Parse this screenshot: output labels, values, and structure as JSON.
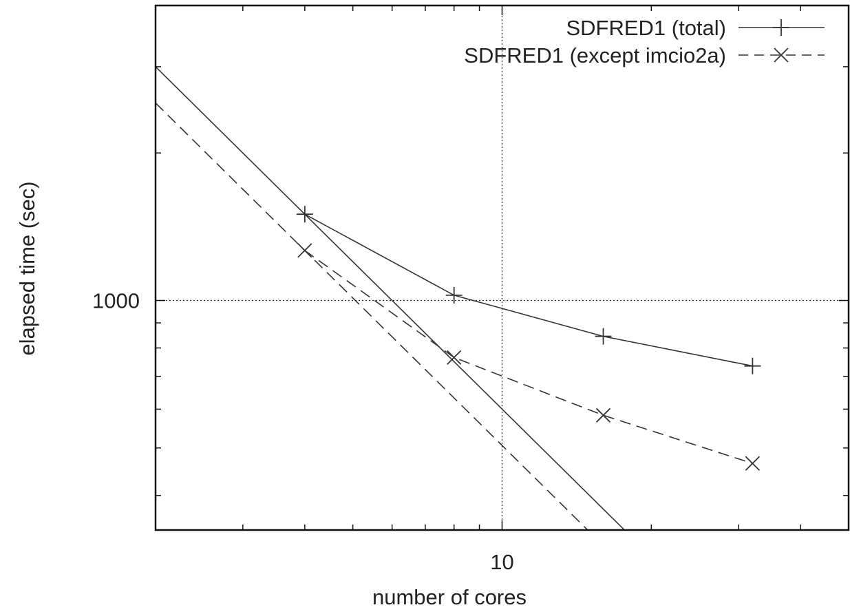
{
  "chart_data": {
    "type": "line",
    "xlabel": "number of cores",
    "ylabel": "elapsed time (sec)",
    "x_scale": "log",
    "y_scale": "log",
    "xlim": [
      2,
      50
    ],
    "ylim": [
      340,
      4000
    ],
    "x_ticks_labeled": [
      {
        "value": 10,
        "label": "10"
      }
    ],
    "y_ticks_labeled": [
      {
        "value": 1000,
        "label": "1000"
      }
    ],
    "grid": "dotted lines at labeled ticks only",
    "legend_position": "top-right",
    "series": [
      {
        "name": "SDFRED1 (total)",
        "marker": "plus",
        "dash": "solid",
        "color": "#333333",
        "points": [
          {
            "x": 4,
            "y": 1500
          },
          {
            "x": 8,
            "y": 1025
          },
          {
            "x": 16,
            "y": 845
          },
          {
            "x": 32,
            "y": 735
          }
        ],
        "reference": [
          {
            "x": 2,
            "y": 3000
          },
          {
            "x": 4,
            "y": 1500
          },
          {
            "x": 23,
            "y": 261
          }
        ]
      },
      {
        "name": "SDFRED1 (except imcio2a)",
        "marker": "cross",
        "dash": "dashed",
        "color": "#333333",
        "points": [
          {
            "x": 4,
            "y": 1265
          },
          {
            "x": 8,
            "y": 765
          },
          {
            "x": 16,
            "y": 583
          },
          {
            "x": 32,
            "y": 465
          }
        ],
        "reference": [
          {
            "x": 2,
            "y": 2530
          },
          {
            "x": 4,
            "y": 1265
          },
          {
            "x": 23,
            "y": 220
          }
        ]
      }
    ]
  }
}
